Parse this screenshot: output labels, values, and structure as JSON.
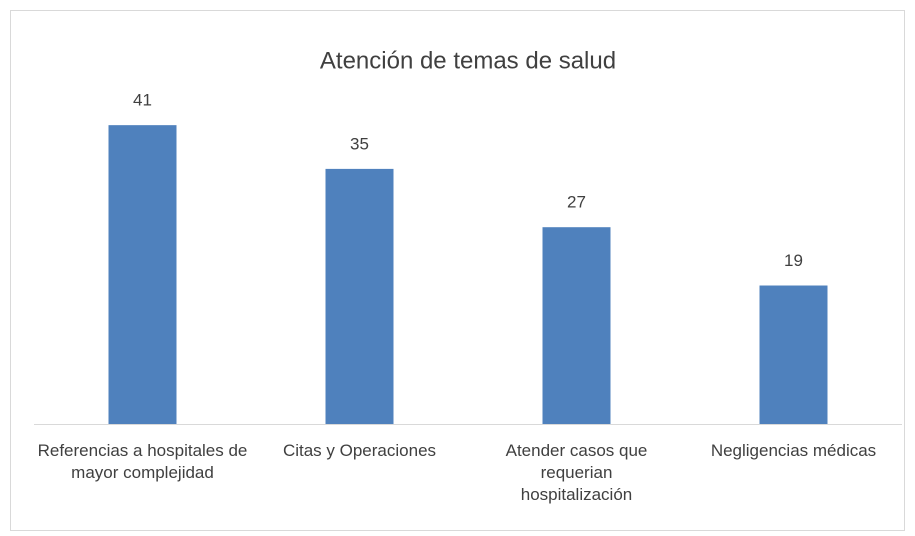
{
  "chart_data": {
    "type": "bar",
    "title": "Atención de temas de salud",
    "categories": [
      "Referencias a hospitales de mayor complejidad",
      "Citas y Operaciones",
      "Atender casos que requerian hospitalización",
      "Negligencias médicas"
    ],
    "values": [
      41,
      35,
      27,
      19
    ],
    "color": "#4f81bd",
    "ylim": [
      0,
      45
    ]
  }
}
